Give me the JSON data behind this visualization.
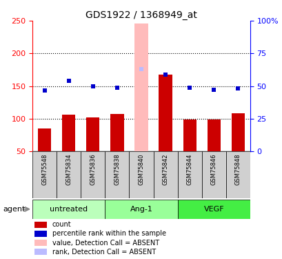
{
  "title": "GDS1922 / 1368949_at",
  "samples": [
    "GSM75548",
    "GSM75834",
    "GSM75836",
    "GSM75838",
    "GSM75840",
    "GSM75842",
    "GSM75844",
    "GSM75846",
    "GSM75848"
  ],
  "bar_values": [
    85,
    106,
    102,
    107,
    246,
    168,
    99,
    99,
    108
  ],
  "rank_values": [
    143,
    158,
    150,
    148,
    176,
    168,
    148,
    144,
    147
  ],
  "detection_absent": [
    false,
    false,
    false,
    false,
    true,
    false,
    false,
    false,
    false
  ],
  "groups": [
    {
      "label": "untreated",
      "indices": [
        0,
        1,
        2
      ]
    },
    {
      "label": "Ang-1",
      "indices": [
        3,
        4,
        5
      ]
    },
    {
      "label": "VEGF",
      "indices": [
        6,
        7,
        8
      ]
    }
  ],
  "group_colors": [
    "#bbffbb",
    "#99ff99",
    "#44ee44"
  ],
  "ylim_left": [
    50,
    250
  ],
  "ylim_right": [
    0,
    100
  ],
  "yticks_left": [
    50,
    100,
    150,
    200,
    250
  ],
  "yticks_right": [
    0,
    25,
    50,
    75,
    100
  ],
  "ytick_right_labels": [
    "0",
    "25",
    "50",
    "75",
    "100%"
  ],
  "bar_color": "#cc0000",
  "rank_color": "#0000cc",
  "absent_bar_color": "#ffbbbb",
  "absent_rank_color": "#bbbbff",
  "bar_width": 0.55,
  "grid_lines": [
    100,
    150,
    200
  ],
  "agent_label": "agent",
  "legend_items": [
    {
      "color": "#cc0000",
      "label": "count"
    },
    {
      "color": "#0000cc",
      "label": "percentile rank within the sample"
    },
    {
      "color": "#ffbbbb",
      "label": "value, Detection Call = ABSENT"
    },
    {
      "color": "#bbbbff",
      "label": "rank, Detection Call = ABSENT"
    }
  ]
}
